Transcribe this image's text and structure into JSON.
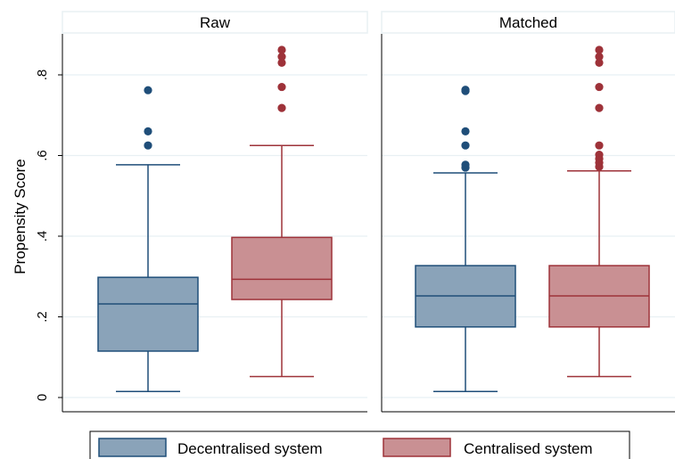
{
  "chart_data": {
    "type": "box",
    "ylabel": "Propensity Score",
    "ylim": [
      0,
      0.9
    ],
    "yticks": [
      {
        "value": 0,
        "label": "0"
      },
      {
        "value": 0.2,
        "label": ".2"
      },
      {
        "value": 0.4,
        "label": ".4"
      },
      {
        "value": 0.6,
        "label": ".6"
      },
      {
        "value": 0.8,
        "label": ".8"
      }
    ],
    "grid": true,
    "legend_position": "bottom",
    "legend": [
      {
        "label": "Decentralised system",
        "color": "#8aa3b9",
        "stroke": "#1f4e79"
      },
      {
        "label": "Centralised system",
        "color": "#c99093",
        "stroke": "#9e3239"
      }
    ],
    "panels": [
      {
        "title": "Raw",
        "boxes": [
          {
            "group": "Decentralised system",
            "whisker_low": 0.015,
            "q1": 0.115,
            "median": 0.232,
            "q3": 0.298,
            "whisker_high": 0.577,
            "outliers": [
              0.625,
              0.66,
              0.762
            ]
          },
          {
            "group": "Centralised system",
            "whisker_low": 0.052,
            "q1": 0.243,
            "median": 0.293,
            "q3": 0.397,
            "whisker_high": 0.625,
            "outliers": [
              0.718,
              0.77,
              0.83,
              0.845,
              0.862
            ]
          }
        ]
      },
      {
        "title": "Matched",
        "boxes": [
          {
            "group": "Decentralised system",
            "whisker_low": 0.015,
            "q1": 0.175,
            "median": 0.252,
            "q3": 0.327,
            "whisker_high": 0.557,
            "outliers": [
              0.57,
              0.577,
              0.625,
              0.66,
              0.76,
              0.763
            ]
          },
          {
            "group": "Centralised system",
            "whisker_low": 0.052,
            "q1": 0.175,
            "median": 0.252,
            "q3": 0.327,
            "whisker_high": 0.562,
            "outliers": [
              0.572,
              0.582,
              0.592,
              0.602,
              0.625,
              0.718,
              0.77,
              0.83,
              0.845,
              0.862
            ]
          }
        ]
      }
    ]
  }
}
